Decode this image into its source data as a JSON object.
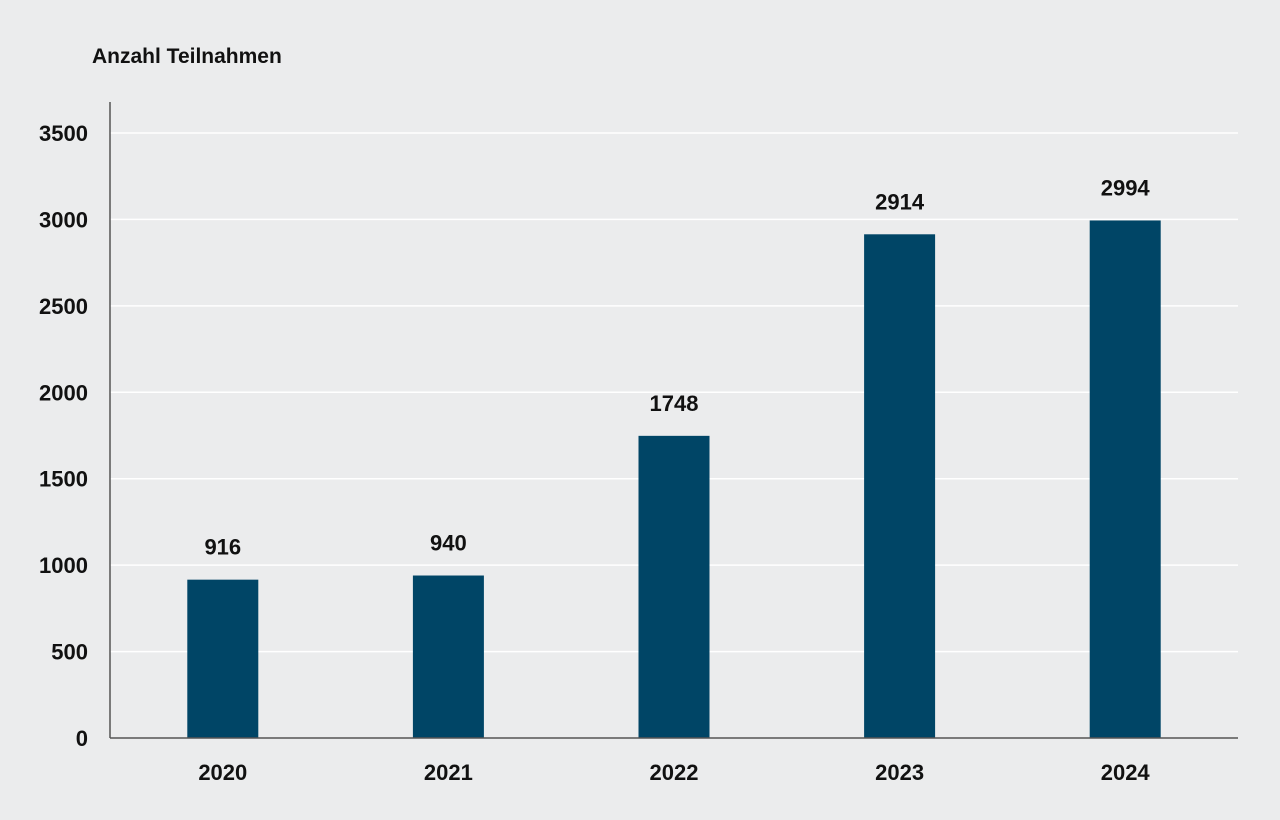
{
  "chart_data": {
    "type": "bar",
    "ylabel": "Anzahl Teilnahmen",
    "categories": [
      "2020",
      "2021",
      "2022",
      "2023",
      "2024"
    ],
    "values": [
      916,
      940,
      1748,
      2914,
      2994
    ],
    "ylim": [
      0,
      3500
    ],
    "yticks": [
      0,
      500,
      1000,
      1500,
      2000,
      2500,
      3000,
      3500
    ],
    "grid": true,
    "data_labels": true,
    "colors": {
      "bar": "#004566",
      "grid": "#ffffff",
      "axis": "#555555",
      "background": "#ebeced"
    }
  }
}
